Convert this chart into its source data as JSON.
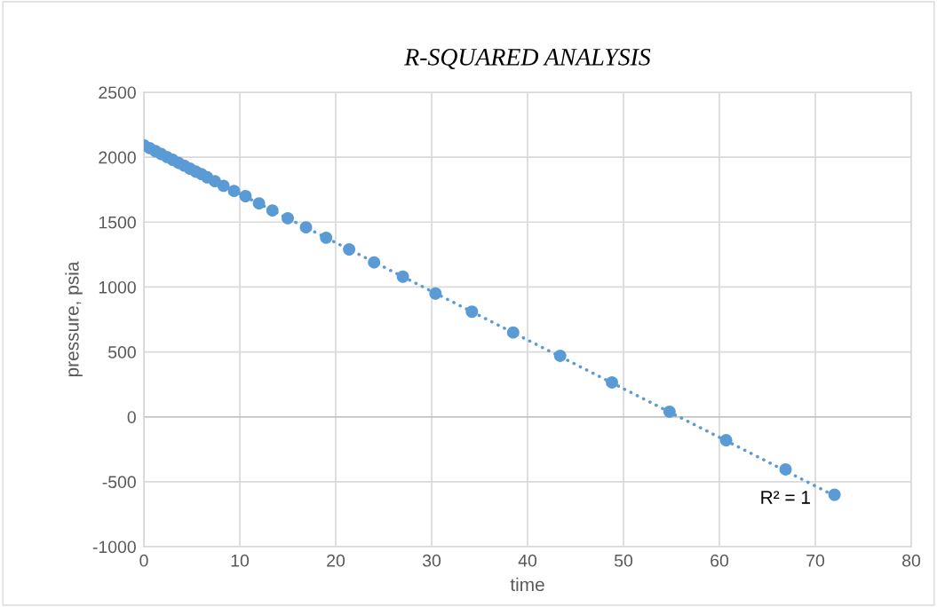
{
  "chart_data": {
    "type": "scatter",
    "title": "R-SQUARED ANALYSIS",
    "xlabel": "time",
    "ylabel": "pressure, psia",
    "xlim": [
      0,
      80
    ],
    "xticks": [
      0,
      10,
      20,
      30,
      40,
      50,
      60,
      70,
      80
    ],
    "ylim": [
      -1000,
      2500
    ],
    "yticks": [
      -1000,
      -500,
      0,
      500,
      1000,
      1500,
      2000,
      2500
    ],
    "grid": true,
    "legend": false,
    "series": [
      {
        "marker": "circle",
        "color": "#5b9bd5",
        "x": [
          0,
          0.6,
          1.2,
          1.8,
          2.4,
          3.0,
          3.6,
          4.2,
          4.8,
          5.4,
          6,
          6.6,
          7.4,
          8.3,
          9.4,
          10.6,
          12,
          13.4,
          15,
          16.9,
          19,
          21.4,
          24,
          27,
          30.4,
          34.2,
          38.5,
          43.4,
          48.8,
          54.8,
          60.7,
          66.9,
          72
        ],
        "values": [
          2092,
          2070,
          2047,
          2025,
          2002,
          1980,
          1957,
          1935,
          1912,
          1890,
          1870,
          1845,
          1815,
          1780,
          1740,
          1700,
          1645,
          1590,
          1530,
          1460,
          1380,
          1290,
          1190,
          1080,
          950,
          810,
          650,
          470,
          265,
          40,
          -180,
          -405,
          -600
        ]
      },
      {
        "type": "line",
        "color": "#5b9bd5",
        "line_style": "dotted",
        "x": [
          0,
          72
        ],
        "values": [
          2092,
          -608
        ]
      }
    ],
    "annotations": [
      "R² = 1"
    ]
  }
}
